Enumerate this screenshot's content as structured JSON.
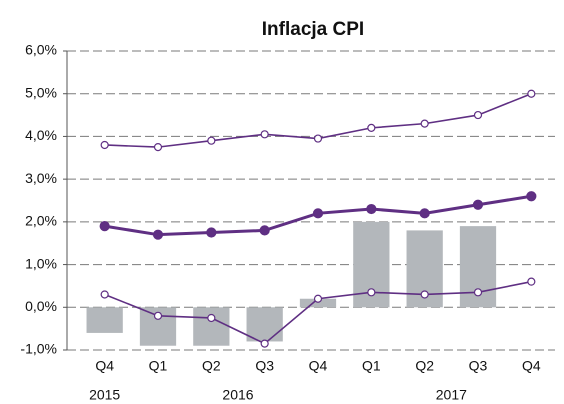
{
  "chart_data": {
    "type": "combo",
    "title": "Inflacja CPI",
    "categories": [
      "Q4",
      "Q1",
      "Q2",
      "Q3",
      "Q4",
      "Q1",
      "Q2",
      "Q3",
      "Q4"
    ],
    "x_groups": [
      {
        "label": "2015",
        "size": 1
      },
      {
        "label": "2016",
        "size": 4
      },
      {
        "label": "2017",
        "size": 4
      }
    ],
    "series": [
      {
        "type": "bar",
        "color": "#b3b7bb",
        "values": [
          -0.6,
          -0.9,
          -0.9,
          -0.8,
          0.2,
          2.0,
          1.8,
          1.9,
          null
        ]
      },
      {
        "type": "line",
        "marker": "open",
        "color": "#5f2f83",
        "values": [
          3.8,
          3.75,
          3.9,
          4.05,
          3.95,
          4.2,
          4.3,
          4.5,
          5.0
        ]
      },
      {
        "type": "line",
        "marker": "filled",
        "color": "#5f2f83",
        "values": [
          1.9,
          1.7,
          1.75,
          1.8,
          2.2,
          2.3,
          2.2,
          2.4,
          2.6
        ]
      },
      {
        "type": "line",
        "marker": "open",
        "color": "#5f2f83",
        "values": [
          0.3,
          -0.2,
          -0.25,
          -0.85,
          0.2,
          0.35,
          0.3,
          0.35,
          0.6
        ]
      }
    ],
    "ylim": [
      -1,
      6
    ],
    "yticks": [
      {
        "value": -1,
        "label": "-1,0%"
      },
      {
        "value": 0,
        "label": "0,0%"
      },
      {
        "value": 1,
        "label": "1,0%"
      },
      {
        "value": 2,
        "label": "2,0%"
      },
      {
        "value": 3,
        "label": "3,0%"
      },
      {
        "value": 4,
        "label": "4,0%"
      },
      {
        "value": 5,
        "label": "5,0%"
      },
      {
        "value": 6,
        "label": "6,0%"
      }
    ],
    "grid": true
  }
}
